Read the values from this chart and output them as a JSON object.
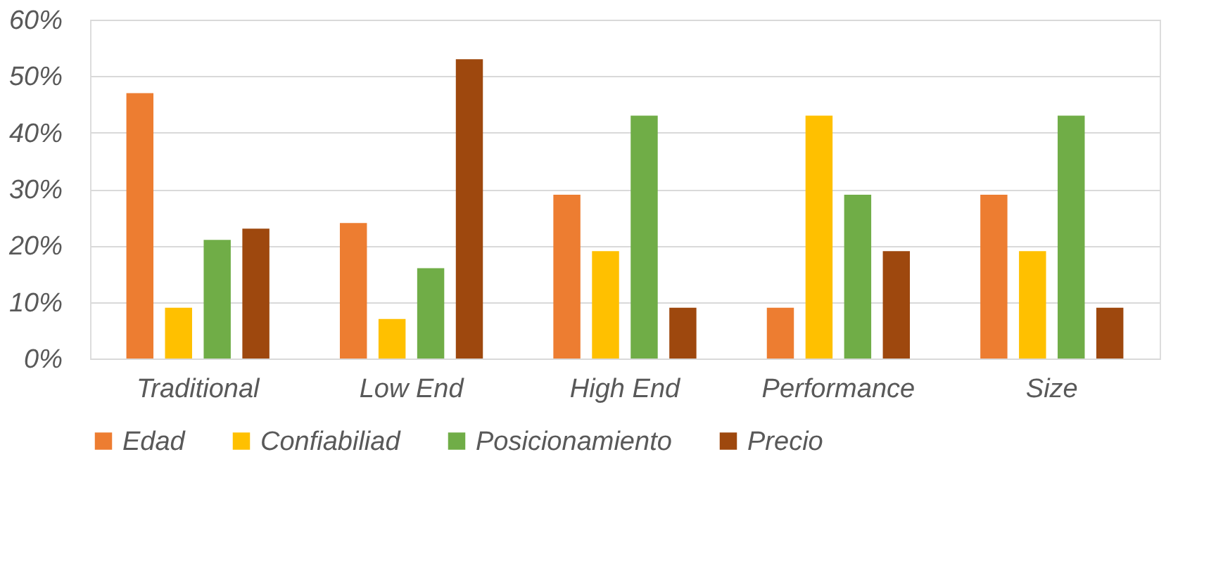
{
  "chart_data": {
    "type": "bar",
    "categories": [
      "Traditional",
      "Low End",
      "High End",
      "Performance",
      "Size"
    ],
    "series": [
      {
        "name": "Edad",
        "color": "#ed7d31",
        "values": [
          47,
          24,
          29,
          9,
          29
        ]
      },
      {
        "name": "Confiabiliad",
        "color": "#ffc000",
        "values": [
          9,
          7,
          19,
          43,
          19
        ]
      },
      {
        "name": "Posicionamiento",
        "color": "#70ad47",
        "values": [
          21,
          16,
          43,
          29,
          43
        ]
      },
      {
        "name": "Precio",
        "color": "#9e480e",
        "values": [
          23,
          53,
          9,
          19,
          9
        ]
      }
    ],
    "ylim": [
      0,
      60
    ],
    "yticks": [
      {
        "value": 0,
        "label": "0%"
      },
      {
        "value": 10,
        "label": "10%"
      },
      {
        "value": 20,
        "label": "20%"
      },
      {
        "value": 30,
        "label": "30%"
      },
      {
        "value": 40,
        "label": "40%"
      },
      {
        "value": 50,
        "label": "50%"
      },
      {
        "value": 60,
        "label": "60%"
      }
    ],
    "grid": "y",
    "legend": "bottom"
  }
}
